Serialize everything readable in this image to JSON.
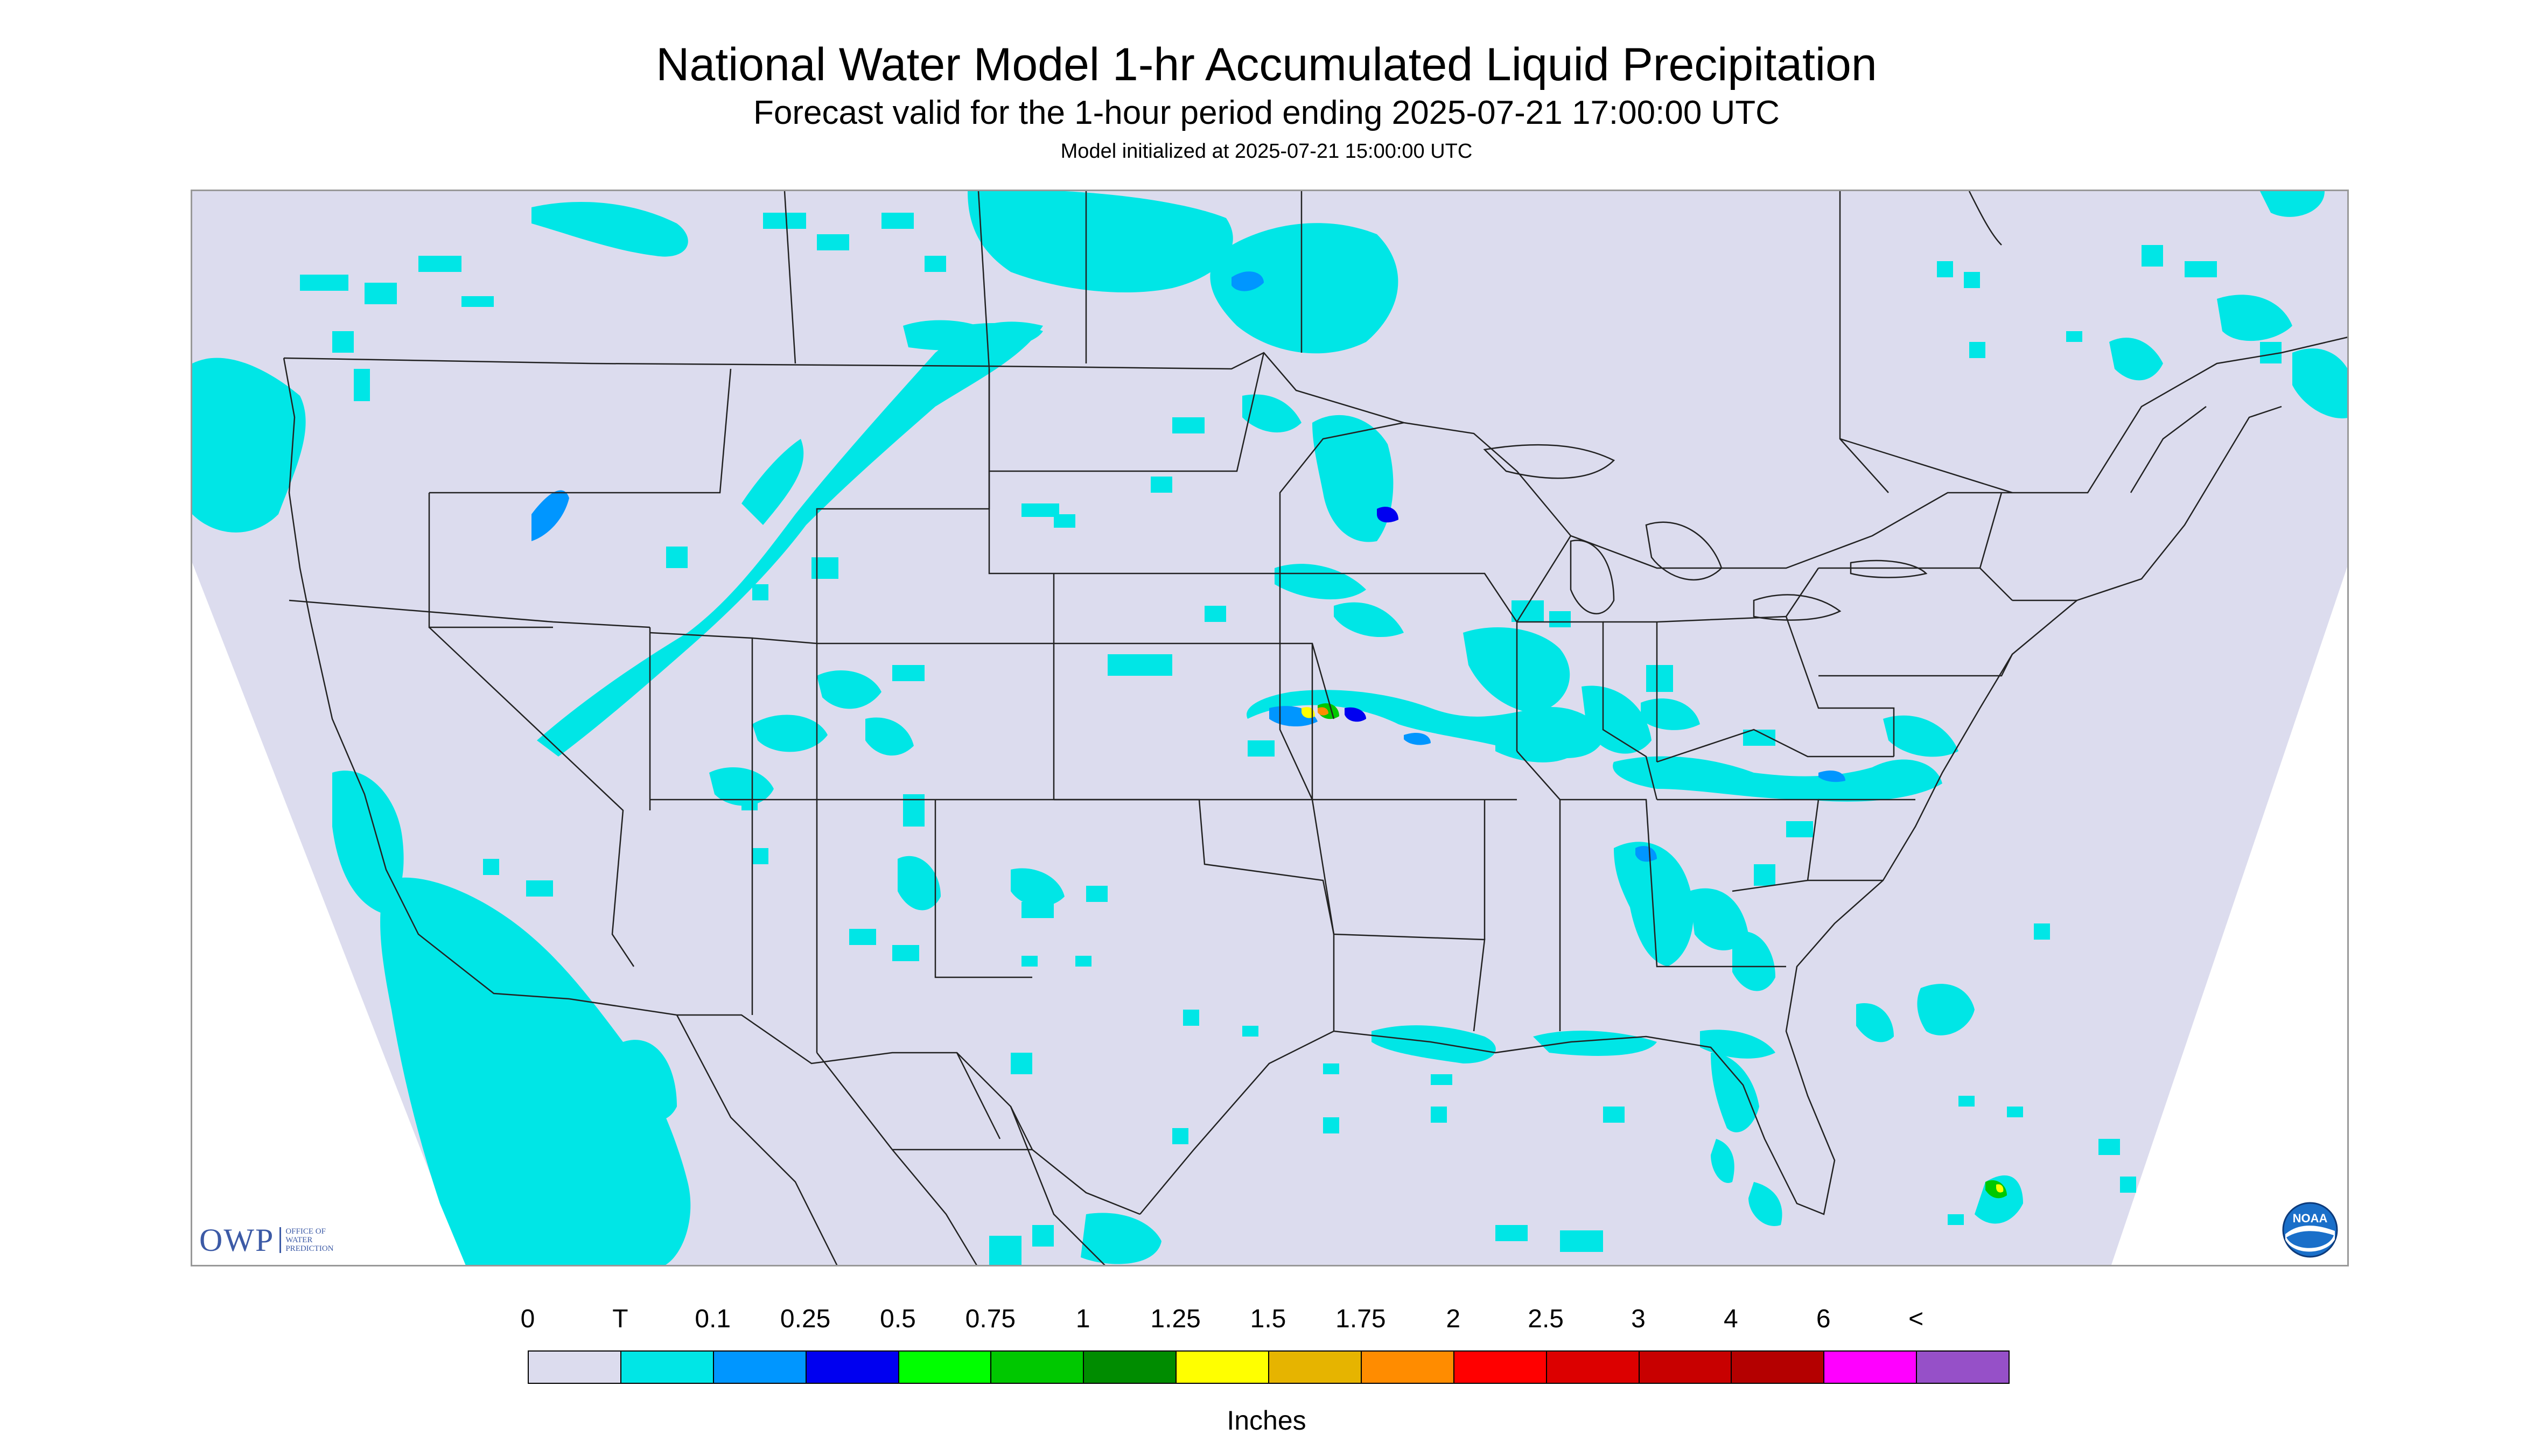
{
  "header": {
    "title": "National Water Model 1-hr Accumulated Liquid Precipitation",
    "subtitle": "Forecast valid for the 1-hour period ending 2025-07-21 17:00:00 UTC",
    "init": "Model initialized at 2025-07-21 15:00:00 UTC"
  },
  "logos": {
    "owp_text": "OWP",
    "owp_sub": [
      "OFFICE OF",
      "WATER",
      "PREDICTION"
    ],
    "noaa_text": "NOAA"
  },
  "legend": {
    "tick_labels": [
      "0",
      "T",
      "0.1",
      "0.25",
      "0.5",
      "0.75",
      "1",
      "1.25",
      "1.5",
      "1.75",
      "2",
      "2.5",
      "3",
      "4",
      "6",
      "<"
    ],
    "colors": [
      "#dcdcee",
      "#00e6e6",
      "#0096ff",
      "#0000f0",
      "#00ff00",
      "#00c800",
      "#008c00",
      "#ffff00",
      "#e6b400",
      "#ff8c00",
      "#ff0000",
      "#dc0000",
      "#c80000",
      "#b40000",
      "#ff00ff",
      "#9650c8"
    ],
    "units": "Inches"
  },
  "colors": {
    "domain_fill": "#dcdcee",
    "outside_fill": "#ffffff",
    "boundary": "#222222",
    "trace": "#00e6e6",
    "light": "#0096ff",
    "moderate": "#0000f0"
  }
}
